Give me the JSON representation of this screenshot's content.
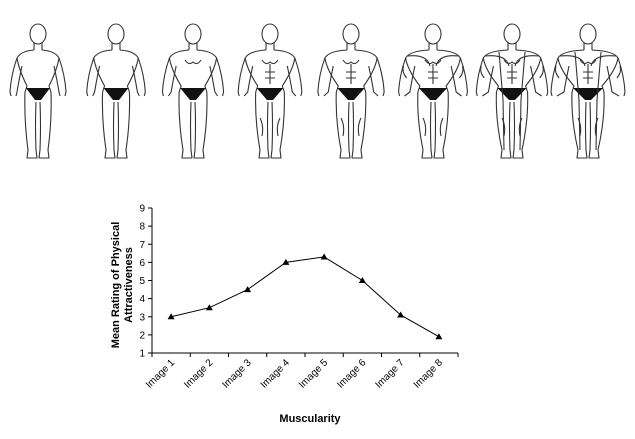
{
  "chart_data": {
    "type": "line",
    "categories": [
      "Image 1",
      "Image 2",
      "Image 3",
      "Image 4",
      "Image 5",
      "Image 6",
      "Image 7",
      "Image 8"
    ],
    "series": [
      {
        "values": [
          3.0,
          3.5,
          4.5,
          6.0,
          6.3,
          5.0,
          3.1,
          1.9
        ]
      }
    ],
    "xlabel": "Muscularity",
    "ylabel": [
      "Mean Rating of Physical",
      "Attractiveness"
    ],
    "yticks": [
      1,
      2,
      3,
      4,
      5,
      6,
      7,
      8,
      9
    ],
    "ylim": [
      1,
      9
    ],
    "grid": false,
    "marker": "triangle",
    "line_color": "#000000"
  },
  "figures": {
    "count": 8,
    "muscularity_levels": [
      1,
      2,
      3,
      4,
      5,
      6,
      7,
      8
    ],
    "icon": "male-body-outline"
  }
}
